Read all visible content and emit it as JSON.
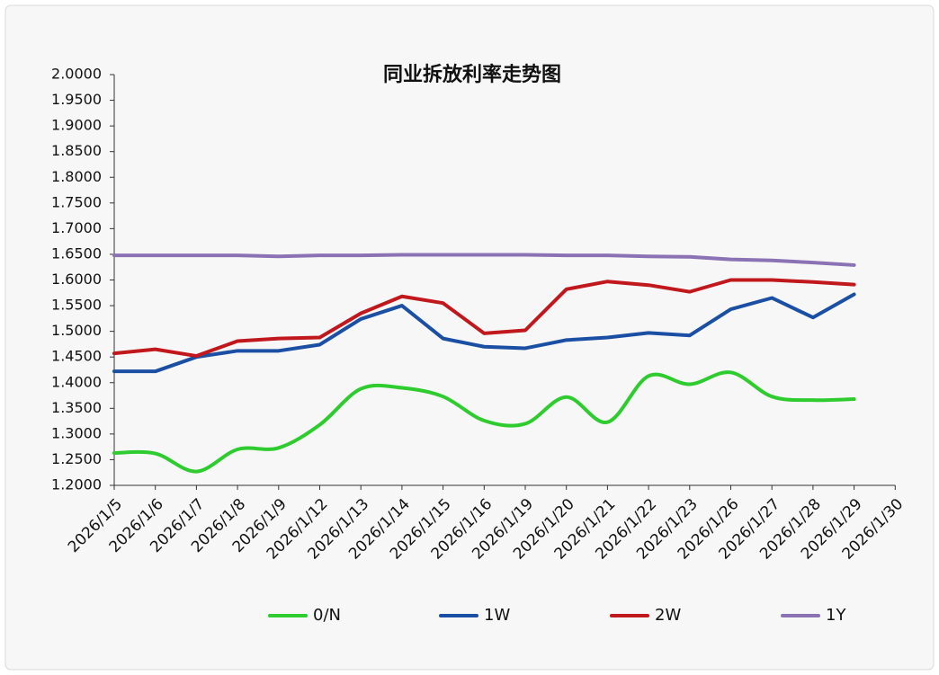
{
  "chart_data": {
    "type": "line",
    "title": "同业拆放利率走势图",
    "categories": [
      "2026/1/5",
      "2026/1/6",
      "2026/1/7",
      "2026/1/8",
      "2026/1/9",
      "2026/1/12",
      "2026/1/13",
      "2026/1/14",
      "2026/1/15",
      "2026/1/16",
      "2026/1/19",
      "2026/1/20",
      "2026/1/21",
      "2026/1/22",
      "2026/1/23",
      "2026/1/26",
      "2026/1/27",
      "2026/1/28",
      "2026/1/29",
      "2026/1/30"
    ],
    "series": [
      {
        "name": "0/N",
        "color": "#2ecc2e",
        "smooth": true,
        "values": [
          1.263,
          1.262,
          1.227,
          1.27,
          1.273,
          1.318,
          1.388,
          1.39,
          1.373,
          1.326,
          1.32,
          1.372,
          1.323,
          1.413,
          1.397,
          1.42,
          1.373,
          1.366,
          1.368,
          null
        ]
      },
      {
        "name": "1W",
        "color": "#1a4fa3",
        "values": [
          1.422,
          1.422,
          1.45,
          1.462,
          1.462,
          1.474,
          1.524,
          1.55,
          1.486,
          1.47,
          1.467,
          1.483,
          1.488,
          1.497,
          1.492,
          1.543,
          1.565,
          1.527,
          1.572,
          null
        ]
      },
      {
        "name": "2W",
        "color": "#c0181c",
        "values": [
          1.457,
          1.465,
          1.452,
          1.481,
          1.486,
          1.488,
          1.535,
          1.568,
          1.555,
          1.496,
          1.502,
          1.582,
          1.597,
          1.59,
          1.577,
          1.6,
          1.6,
          1.596,
          1.591,
          null
        ]
      },
      {
        "name": "1Y",
        "color": "#8a72b5",
        "values": [
          1.648,
          1.648,
          1.648,
          1.648,
          1.646,
          1.648,
          1.648,
          1.649,
          1.649,
          1.649,
          1.649,
          1.648,
          1.648,
          1.646,
          1.645,
          1.64,
          1.638,
          1.634,
          1.629,
          null
        ]
      }
    ],
    "ylim": [
      1.2,
      2.0
    ],
    "yticks": [
      {
        "value": 1.2,
        "label": "1.2000"
      },
      {
        "value": 1.25,
        "label": "1.2500"
      },
      {
        "value": 1.3,
        "label": "1.3000"
      },
      {
        "value": 1.35,
        "label": "1.3500"
      },
      {
        "value": 1.4,
        "label": "1.4000"
      },
      {
        "value": 1.45,
        "label": "1.4500"
      },
      {
        "value": 1.5,
        "label": "1.5000"
      },
      {
        "value": 1.55,
        "label": "1.5500"
      },
      {
        "value": 1.6,
        "label": "1.6000"
      },
      {
        "value": 1.65,
        "label": "1.6500"
      },
      {
        "value": 1.7,
        "label": "1.7000"
      },
      {
        "value": 1.75,
        "label": "1.7500"
      },
      {
        "value": 1.8,
        "label": "1.8000"
      },
      {
        "value": 1.85,
        "label": "1.8500"
      },
      {
        "value": 1.9,
        "label": "1.9000"
      },
      {
        "value": 1.95,
        "label": "1.9500"
      },
      {
        "value": 2.0,
        "label": "2.0000"
      }
    ],
    "grid": false,
    "legend": "bottom"
  }
}
